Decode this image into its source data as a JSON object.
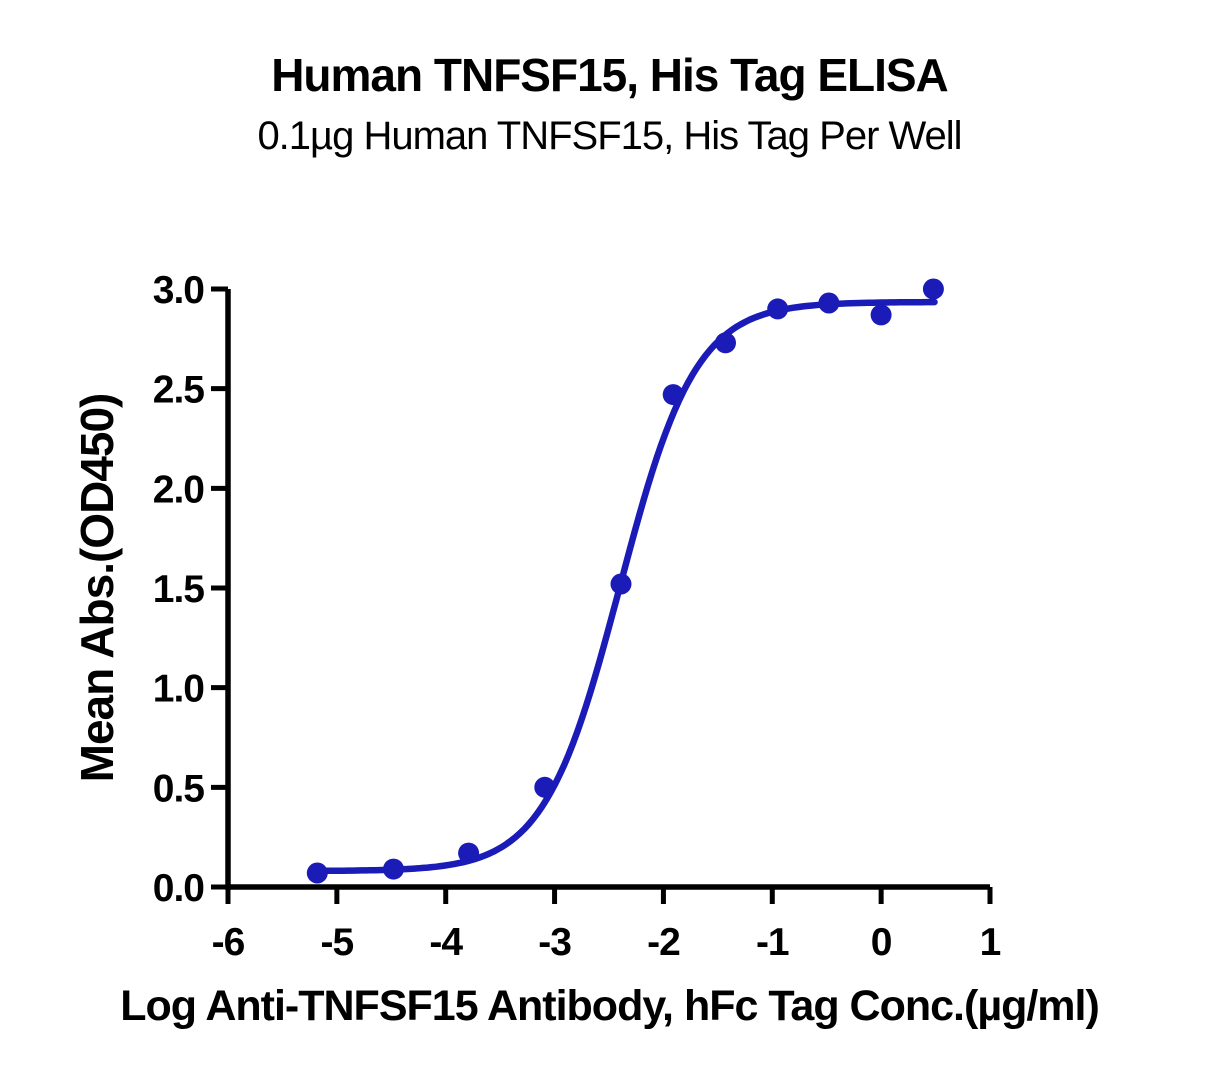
{
  "chart_data": {
    "type": "scatter",
    "title": "Human TNFSF15, His Tag ELISA",
    "subtitle": "0.1µg Human TNFSF15, His Tag Per Well",
    "xlabel": "Log Anti-TNFSF15 Antibody, hFc Tag Conc.(µg/ml)",
    "ylabel": "Mean Abs.(OD450)",
    "xlim": [
      -6,
      1
    ],
    "ylim": [
      0,
      3
    ],
    "x_ticks": [
      -6,
      -5,
      -4,
      -3,
      -2,
      -1,
      0,
      1
    ],
    "x_tick_labels": [
      "-6",
      "-5",
      "-4",
      "-3",
      "-2",
      "-1",
      "0",
      "1"
    ],
    "y_ticks": [
      0,
      0.5,
      1,
      1.5,
      2,
      2.5,
      3
    ],
    "y_tick_labels": [
      "0.0",
      "0.5",
      "1.0",
      "1.5",
      "2.0",
      "2.5",
      "3.0"
    ],
    "grid": false,
    "legend": "none",
    "axis_color": "#000000",
    "background_color": "#ffffff",
    "series": [
      {
        "color": "#1B1BB8",
        "marker": "circle",
        "x": [
          -5.18,
          -4.48,
          -3.79,
          -3.09,
          -2.39,
          -1.91,
          -1.43,
          -0.95,
          -0.48,
          0.0,
          0.48
        ],
        "y": [
          0.07,
          0.09,
          0.17,
          0.5,
          1.52,
          2.47,
          2.73,
          2.9,
          2.93,
          2.87,
          3.0
        ]
      }
    ],
    "fit_curve": {
      "model": "4PL",
      "bottom": 0.08,
      "top": 2.935,
      "log_ec50": -2.4,
      "hill_slope": 1.25,
      "x_start": -5.18,
      "x_end": 0.49
    }
  }
}
